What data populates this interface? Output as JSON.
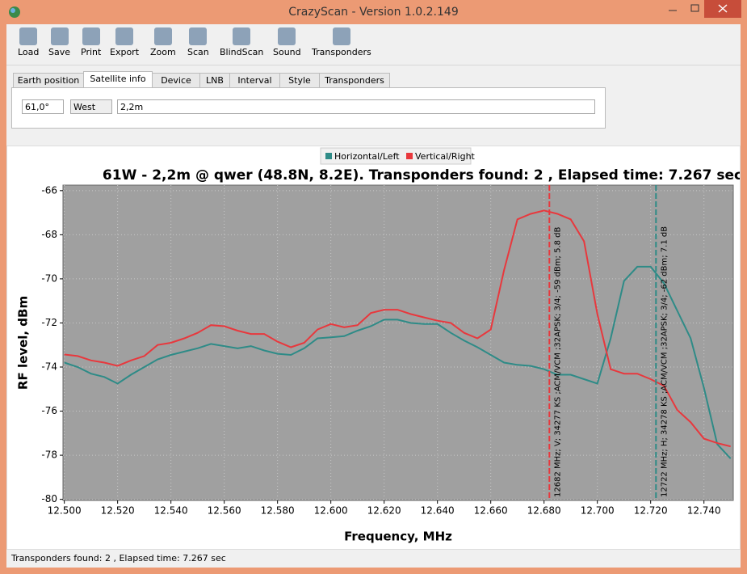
{
  "window": {
    "title": "CrazyScan - Version 1.0.2.149"
  },
  "toolbar": [
    "Load",
    "Save",
    "Print",
    "Export",
    "Zoom",
    "Scan",
    "BlindScan",
    "Sound",
    "Transponders"
  ],
  "tabs": {
    "items": [
      "Earth position",
      "Satellite info",
      "Device",
      "LNB",
      "Interval",
      "Style",
      "Transponders"
    ],
    "active": 1
  },
  "satellite_info": {
    "position": "61,0°",
    "direction": "West",
    "dish": "2,2m"
  },
  "status_bar": "Transponders found: 2 , Elapsed time: 7.267 sec",
  "chart_data": {
    "type": "line",
    "title": "61W - 2,2m @ qwer (48.8N, 8.2E). Transponders found: 2 , Elapsed time: 7.267 sec",
    "x_label": "Frequency, MHz",
    "y_label": "RF level, dBm",
    "x": [
      12.5,
      12.505,
      12.51,
      12.515,
      12.52,
      12.525,
      12.53,
      12.535,
      12.54,
      12.545,
      12.55,
      12.555,
      12.56,
      12.565,
      12.57,
      12.575,
      12.58,
      12.585,
      12.59,
      12.595,
      12.6,
      12.605,
      12.61,
      12.615,
      12.62,
      12.625,
      12.63,
      12.635,
      12.64,
      12.645,
      12.65,
      12.655,
      12.66,
      12.665,
      12.67,
      12.675,
      12.68,
      12.685,
      12.69,
      12.695,
      12.7,
      12.705,
      12.71,
      12.715,
      12.72,
      12.725,
      12.73,
      12.735,
      12.74,
      12.745,
      12.75
    ],
    "series": [
      {
        "name": "Horizontal/Left",
        "color": "#2e8b87",
        "values": [
          -73.8,
          -74.0,
          -74.3,
          -74.45,
          -74.75,
          -74.35,
          -74.0,
          -73.65,
          -73.45,
          -73.3,
          -73.15,
          -72.95,
          -73.05,
          -73.15,
          -73.05,
          -73.25,
          -73.4,
          -73.45,
          -73.15,
          -72.7,
          -72.65,
          -72.6,
          -72.35,
          -72.15,
          -71.85,
          -71.85,
          -72.0,
          -72.05,
          -72.05,
          -72.45,
          -72.8,
          -73.1,
          -73.45,
          -73.8,
          -73.9,
          -73.95,
          -74.1,
          -74.35,
          -74.35,
          -74.55,
          -74.75,
          -72.7,
          -70.1,
          -69.45,
          -69.45,
          -70.2,
          -71.45,
          -72.7,
          -74.95,
          -77.5,
          -78.15
        ]
      },
      {
        "name": "Vertical/Right",
        "color": "#e8383d",
        "values": [
          -73.43,
          -73.5,
          -73.7,
          -73.8,
          -73.95,
          -73.7,
          -73.5,
          -73.0,
          -72.9,
          -72.7,
          -72.45,
          -72.1,
          -72.15,
          -72.35,
          -72.5,
          -72.5,
          -72.85,
          -73.1,
          -72.9,
          -72.3,
          -72.05,
          -72.2,
          -72.1,
          -71.55,
          -71.4,
          -71.4,
          -71.6,
          -71.75,
          -71.9,
          -72.0,
          -72.45,
          -72.7,
          -72.3,
          -69.6,
          -67.3,
          -67.05,
          -66.9,
          -67.05,
          -67.3,
          -68.3,
          -71.6,
          -74.1,
          -74.3,
          -74.3,
          -74.55,
          -74.85,
          -75.95,
          -76.5,
          -77.25,
          -77.45,
          -77.6
        ]
      }
    ],
    "markers": [
      {
        "x": 12.682,
        "color": "#e8383d",
        "label": "12682 MHz; V; 34277 KS ;ACM/VCM ;32APSK; 3/4; -59 dBm; 5.8 dB"
      },
      {
        "x": 12.722,
        "color": "#2e8b87",
        "label": "12722 MHz; H; 34278 KS ;ACM/VCM ;32APSK; 3/4; -62 dBm; 7.1 dB"
      }
    ],
    "xlim": [
      12.4995,
      12.751
    ],
    "ylim": [
      -80.05,
      -65.75
    ],
    "xticks": [
      {
        "value": 12.5,
        "label": "12.500"
      },
      {
        "value": 12.52,
        "label": "12.520"
      },
      {
        "value": 12.54,
        "label": "12.540"
      },
      {
        "value": 12.56,
        "label": "12.560"
      },
      {
        "value": 12.58,
        "label": "12.580"
      },
      {
        "value": 12.6,
        "label": "12.600"
      },
      {
        "value": 12.62,
        "label": "12.620"
      },
      {
        "value": 12.64,
        "label": "12.640"
      },
      {
        "value": 12.66,
        "label": "12.660"
      },
      {
        "value": 12.68,
        "label": "12.680"
      },
      {
        "value": 12.7,
        "label": "12.700"
      },
      {
        "value": 12.72,
        "label": "12.720"
      },
      {
        "value": 12.74,
        "label": "12.740"
      }
    ],
    "yticks": [
      -66,
      -68,
      -70,
      -72,
      -74,
      -76,
      -78,
      -80
    ],
    "grid": true,
    "legend": "top"
  }
}
